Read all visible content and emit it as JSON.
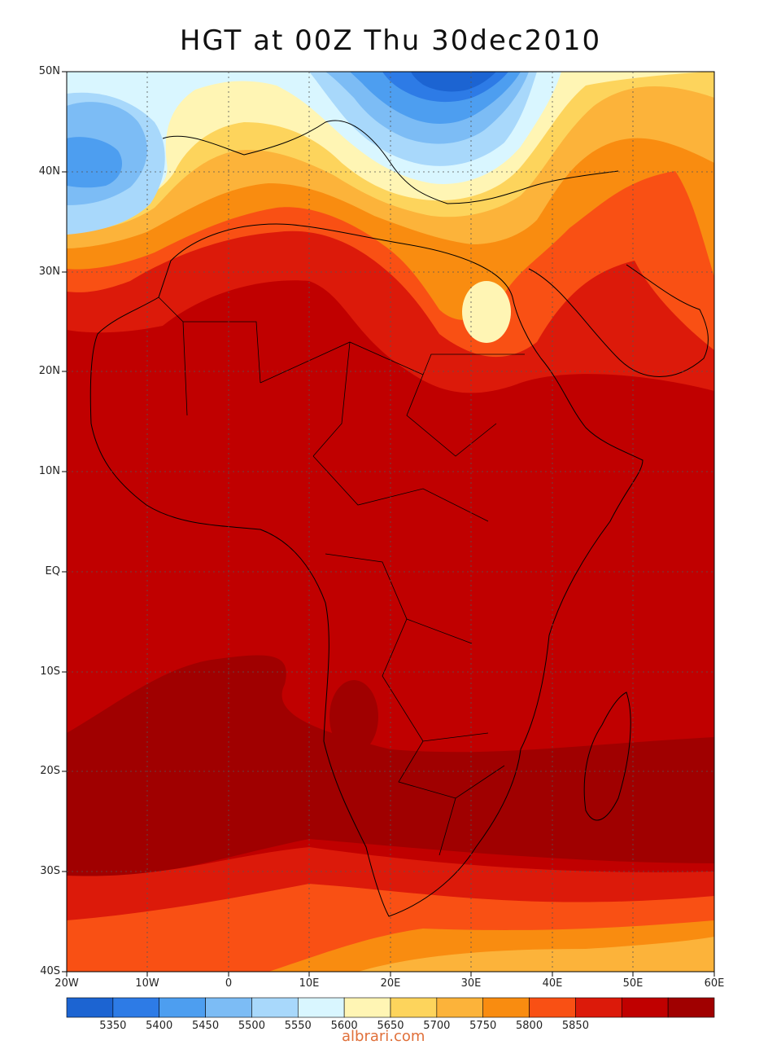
{
  "title": "HGT at 00Z Thu 30dec2010",
  "watermark": "albrari.com",
  "lat_labels": [
    "50N",
    "40N",
    "30N",
    "20N",
    "10N",
    "EQ",
    "10S",
    "20S",
    "30S",
    "40S"
  ],
  "lon_labels": [
    "20W",
    "10W",
    "0",
    "10E",
    "20E",
    "30E",
    "40E",
    "50E",
    "60E"
  ],
  "colorbar": {
    "colors": [
      "#1c64d2",
      "#2d7be6",
      "#4d9ef0",
      "#7cbcf5",
      "#a8d8fb",
      "#d9f6ff",
      "#fff5b4",
      "#fdd45c",
      "#fcb33a",
      "#f98c10",
      "#f95014",
      "#dc1a0a",
      "#c00000",
      "#a00000"
    ],
    "labels": [
      "5350",
      "5400",
      "5450",
      "5500",
      "5550",
      "5600",
      "5650",
      "5700",
      "5750",
      "5800",
      "5850"
    ]
  },
  "map": {
    "variable": "HGT",
    "lat_range": [
      -40,
      50
    ],
    "lon_range": [
      -20,
      60
    ],
    "grid": "dotted",
    "colors": {
      "c5350": "#1c64d2",
      "c5400": "#2d7be6",
      "c5450": "#4d9ef0",
      "c5500": "#7cbcf5",
      "c5550": "#a8d8fb",
      "c5600": "#d9f6ff",
      "c5650": "#fff5b4",
      "c5700": "#fdd45c",
      "c5750": "#fcb33a",
      "c5800": "#f98c10",
      "c5850": "#f95014",
      "c5900": "#dc1a0a",
      "c5950": "#c00000",
      "c6000": "#a00000"
    }
  }
}
